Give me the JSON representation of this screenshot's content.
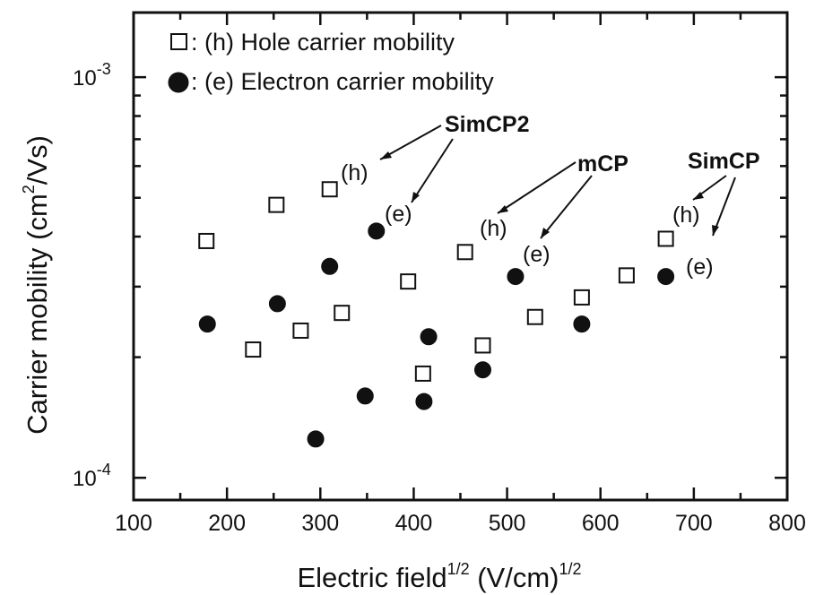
{
  "chart_data": {
    "type": "scatter",
    "xlabel": "Electric field",
    "xlabel_sup1": "1/2",
    "xlabel_unit": "(V/cm)",
    "xlabel_sup2": "1/2",
    "ylabel": "Carrier mobility (cm",
    "ylabel_sup": "2",
    "ylabel_unit": "/Vs)",
    "xlim": [
      100,
      800
    ],
    "ylim": [
      8.8e-05,
      0.00145
    ],
    "yscale": "log",
    "x_ticks": [
      "100",
      "200",
      "300",
      "400",
      "500",
      "600",
      "700",
      "800"
    ],
    "y_ticks": [
      {
        "base": "10",
        "exp": "-3",
        "value": 0.001
      },
      {
        "base": "10",
        "exp": "-4",
        "value": 0.0001
      }
    ],
    "legend": {
      "position": "top-left",
      "entries": [
        {
          "marker": "open-square",
          "text": ": (h) Hole carrier mobility"
        },
        {
          "marker": "filled-circle",
          "text": ": (e) Electron carrier mobility"
        }
      ]
    },
    "series": [
      {
        "name": "(h) Hole carrier mobility",
        "marker": "open-square",
        "points": [
          {
            "x": 178,
            "y": 0.00039
          },
          {
            "x": 253,
            "y": 0.00048
          },
          {
            "x": 310,
            "y": 0.000525
          },
          {
            "x": 228,
            "y": 0.000209
          },
          {
            "x": 279,
            "y": 0.000233
          },
          {
            "x": 323,
            "y": 0.000258
          },
          {
            "x": 394,
            "y": 0.000309
          },
          {
            "x": 410,
            "y": 0.000182
          },
          {
            "x": 474,
            "y": 0.000214
          },
          {
            "x": 455,
            "y": 0.000366
          },
          {
            "x": 530,
            "y": 0.000252
          },
          {
            "x": 580,
            "y": 0.000282
          },
          {
            "x": 628,
            "y": 0.00032
          },
          {
            "x": 670,
            "y": 0.000395
          }
        ]
      },
      {
        "name": "(e) Electron carrier mobility",
        "marker": "filled-circle",
        "points": [
          {
            "x": 179,
            "y": 0.000242
          },
          {
            "x": 254,
            "y": 0.000272
          },
          {
            "x": 310,
            "y": 0.000337
          },
          {
            "x": 360,
            "y": 0.000413
          },
          {
            "x": 295,
            "y": 0.000125
          },
          {
            "x": 348,
            "y": 0.00016
          },
          {
            "x": 411,
            "y": 0.000155
          },
          {
            "x": 416,
            "y": 0.000225
          },
          {
            "x": 474,
            "y": 0.000186
          },
          {
            "x": 509,
            "y": 0.000318
          },
          {
            "x": 580,
            "y": 0.000242
          },
          {
            "x": 670,
            "y": 0.000318
          }
        ]
      }
    ],
    "annotations": {
      "simcp2": "SimCP2",
      "mcp": "mCP",
      "simcp": "SimCP",
      "h": "(h)",
      "e": "(e)"
    }
  }
}
